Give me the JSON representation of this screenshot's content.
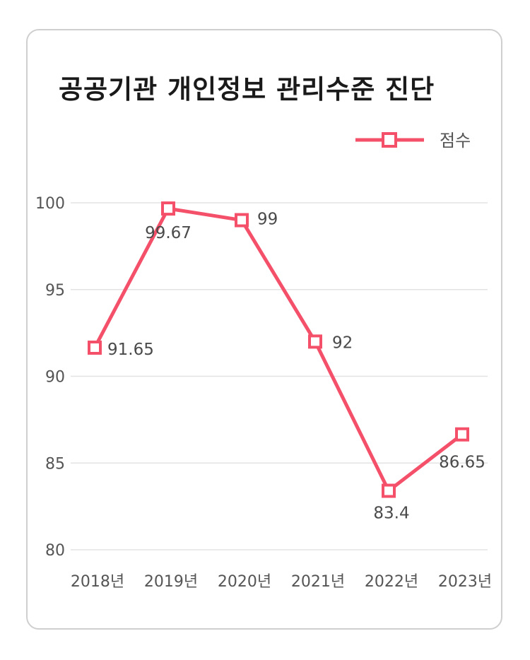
{
  "chart_data": {
    "type": "line",
    "title": "공공기관 개인정보 관리수준 진단",
    "categories": [
      "2018년",
      "2019년",
      "2020년",
      "2021년",
      "2022년",
      "2023년"
    ],
    "series": [
      {
        "name": "점수",
        "values": [
          91.65,
          99.67,
          99,
          92,
          83.4,
          86.65
        ],
        "labels": [
          "91.65",
          "99.67",
          "99",
          "92",
          "83.4",
          "86.65"
        ]
      }
    ],
    "ylim": [
      80,
      100
    ],
    "yticks": [
      80,
      85,
      90,
      95,
      100
    ],
    "grid": true,
    "legend": "top-right",
    "colors": {
      "line": "#f5506a",
      "grid": "#e3e3e3"
    }
  }
}
